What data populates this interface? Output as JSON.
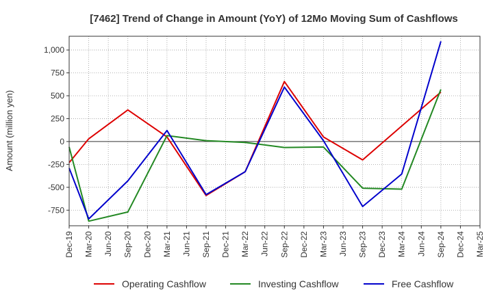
{
  "chart_data": {
    "type": "line",
    "title": "[7462]  Trend of Change in Amount (YoY) of 12Mo Moving Sum of Cashflows",
    "ylabel": "Amount (million yen)",
    "xlabel": "",
    "ylim": [
      -920,
      1150
    ],
    "yticks": [
      -750,
      -500,
      -250,
      0,
      250,
      500,
      750,
      1000
    ],
    "ytick_labels": [
      "-750",
      "-500",
      "-250",
      "0",
      "250",
      "500",
      "750",
      "1,000"
    ],
    "categories": [
      "Dec-19",
      "Mar-20",
      "Jun-20",
      "Sep-20",
      "Dec-20",
      "Mar-21",
      "Jun-21",
      "Sep-21",
      "Dec-21",
      "Mar-22",
      "Jun-22",
      "Sep-22",
      "Dec-22",
      "Mar-23",
      "Jun-23",
      "Sep-23",
      "Dec-23",
      "Mar-24",
      "Jun-24",
      "Sep-24",
      "Dec-24",
      "Mar-25"
    ],
    "grid": true,
    "legend_position": "bottom",
    "series": [
      {
        "name": "Operating Cashflow",
        "color": "#dd0000",
        "values": [
          -230,
          30,
          null,
          345,
          null,
          50,
          null,
          -590,
          null,
          -330,
          null,
          655,
          null,
          50,
          null,
          -200,
          null,
          null,
          null,
          540,
          null,
          null
        ]
      },
      {
        "name": "Investing Cashflow",
        "color": "#228822",
        "values": [
          -60,
          -870,
          null,
          -770,
          null,
          65,
          null,
          10,
          null,
          -10,
          null,
          -65,
          null,
          -60,
          null,
          -510,
          null,
          -520,
          null,
          570,
          null,
          null
        ]
      },
      {
        "name": "Free Cashflow",
        "color": "#0000cc",
        "values": [
          -290,
          -845,
          null,
          -430,
          null,
          120,
          null,
          -580,
          null,
          -330,
          null,
          595,
          null,
          10,
          null,
          -710,
          null,
          -355,
          null,
          1095,
          null,
          null
        ]
      }
    ]
  }
}
